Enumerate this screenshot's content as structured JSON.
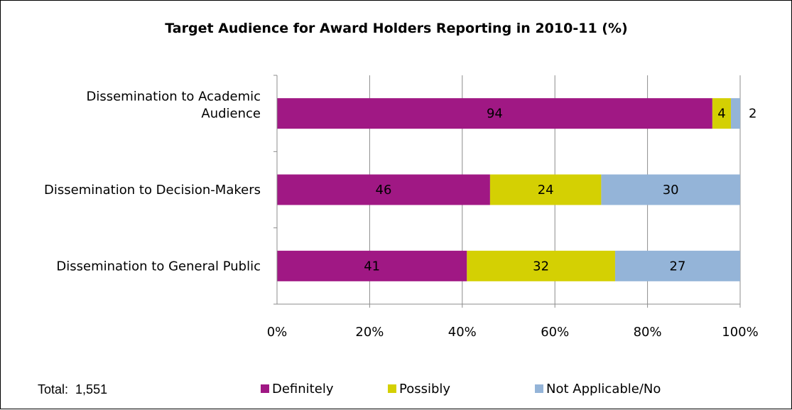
{
  "chart_data": {
    "type": "bar",
    "orientation": "horizontal",
    "stacked": true,
    "title": "Target Audience for Award Holders Reporting in 2010-11 (%)",
    "categories": [
      [
        "Dissemination to Academic",
        "Audience"
      ],
      [
        "Dissemination to Decision-Makers"
      ],
      [
        "Dissemination to General Public"
      ]
    ],
    "series": [
      {
        "name": "Definitely",
        "values": [
          94,
          46,
          41
        ],
        "color": "#a01884"
      },
      {
        "name": "Possibly",
        "values": [
          4,
          24,
          32
        ],
        "color": "#d4d003"
      },
      {
        "name": "Not Applicable/No",
        "values": [
          2,
          30,
          27
        ],
        "color": "#94b4d8"
      }
    ],
    "data_labels": [
      [
        "94",
        "46",
        "41"
      ],
      [
        "4",
        "24",
        "32"
      ],
      [
        "2",
        "30",
        "27"
      ]
    ],
    "xlim": [
      0,
      100
    ],
    "x_ticks": [
      "0%",
      "20%",
      "40%",
      "60%",
      "80%",
      "100%"
    ],
    "grid": true,
    "legend_position": "bottom"
  },
  "footnote": {
    "label": "Total:",
    "value": "1,551"
  }
}
